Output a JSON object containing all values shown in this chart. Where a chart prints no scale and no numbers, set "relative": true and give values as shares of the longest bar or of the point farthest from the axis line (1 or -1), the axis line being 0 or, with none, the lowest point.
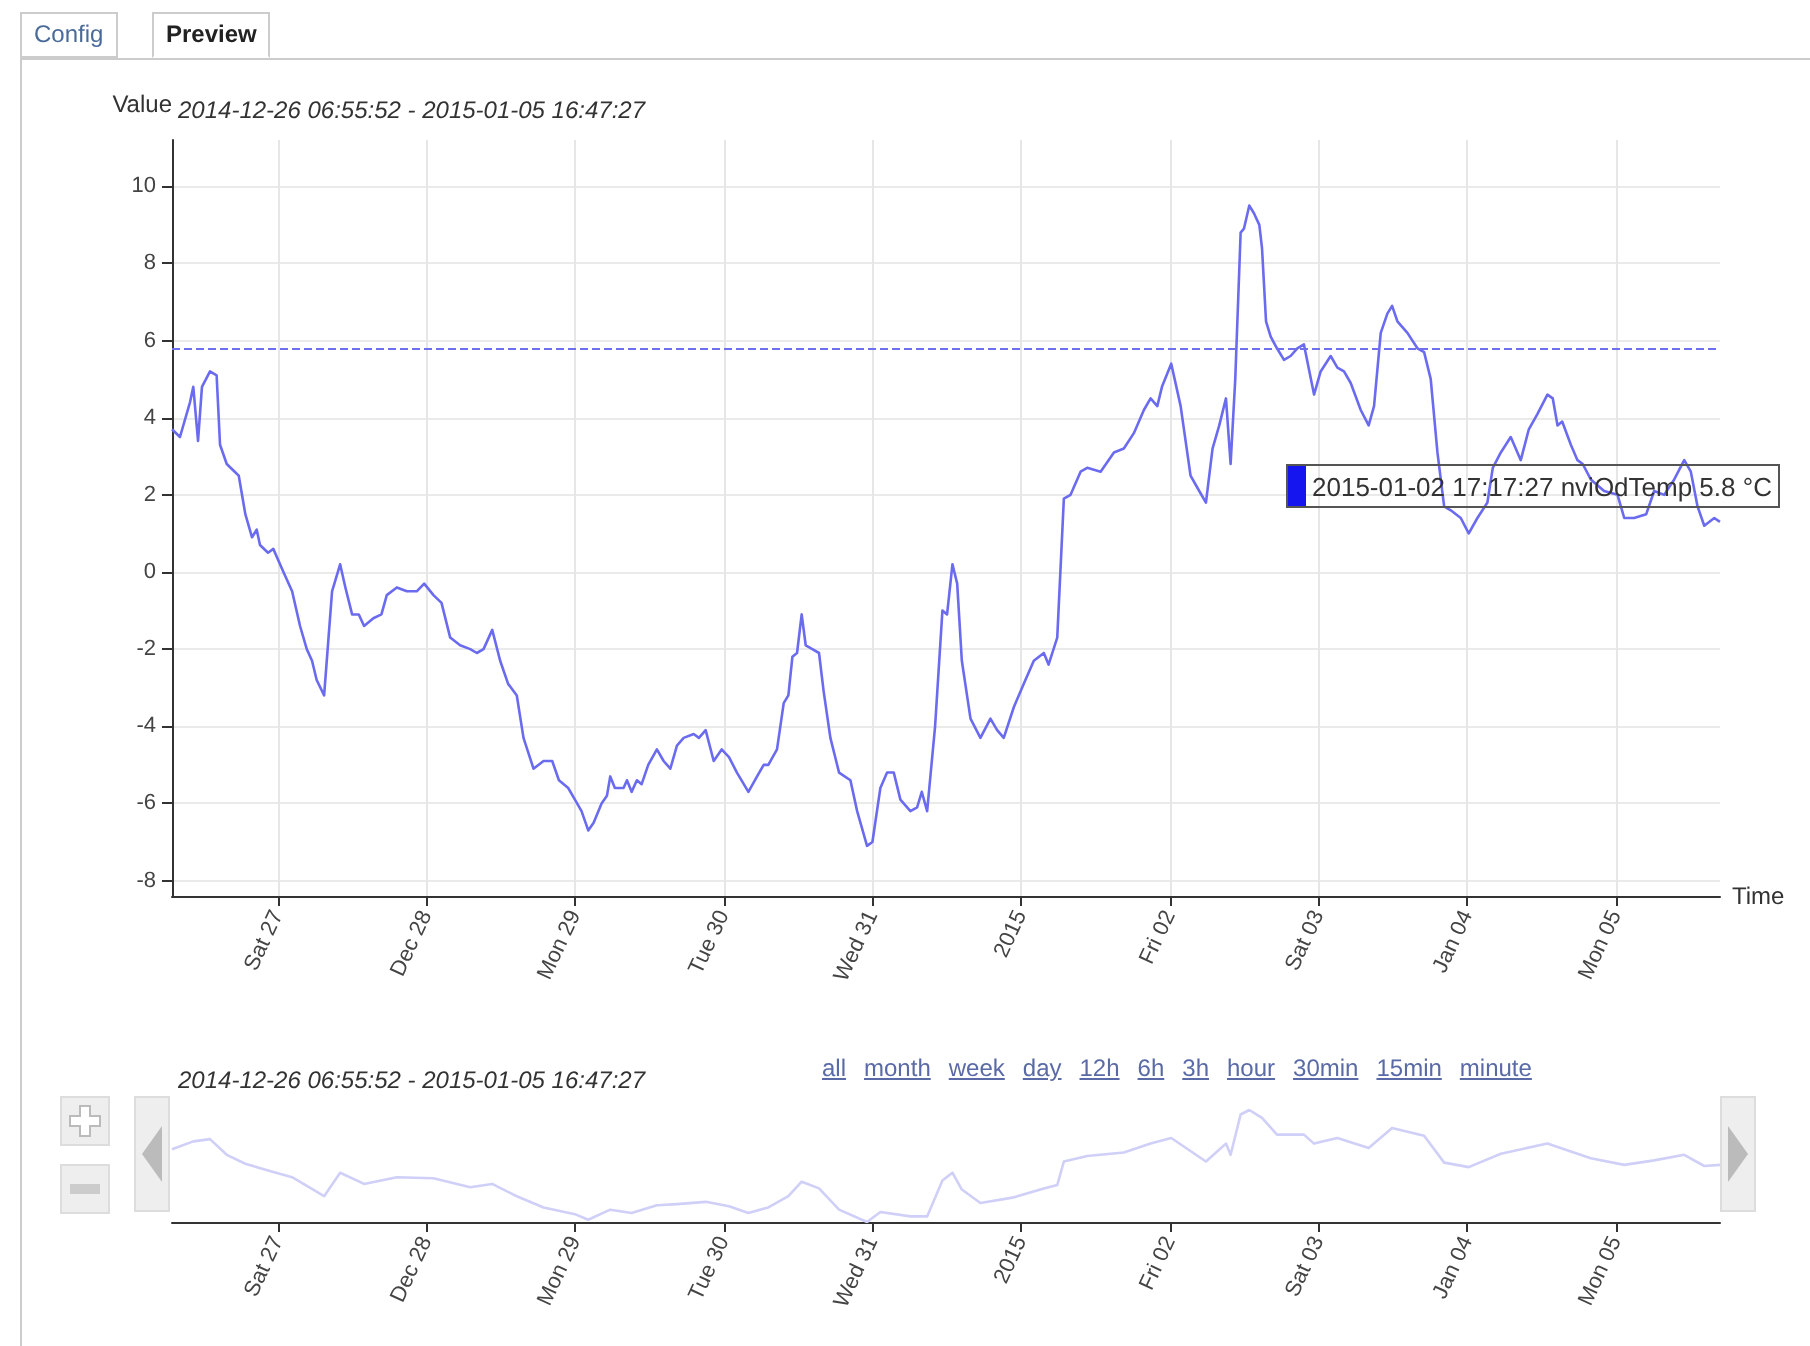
{
  "chart_data": [
    {
      "type": "line",
      "title": "2014-12-26 06:55:52 - 2015-01-05 16:47:27",
      "ylabel": "Value",
      "xlabel": "Time",
      "marker": "none",
      "grid": true,
      "xlim": [
        "2014-12-26T06:55:52",
        "2015-01-05T16:47:27"
      ],
      "ylim": [
        -8.4,
        11.2
      ],
      "xticks": [
        {
          "value": "2014-12-27",
          "label": "Sat 27"
        },
        {
          "value": "2014-12-28",
          "label": "Dec 28"
        },
        {
          "value": "2014-12-29",
          "label": "Mon 29"
        },
        {
          "value": "2014-12-30",
          "label": "Tue 30"
        },
        {
          "value": "2014-12-31",
          "label": "Wed 31"
        },
        {
          "value": "2015-01-01",
          "label": "2015"
        },
        {
          "value": "2015-01-02",
          "label": "Fri 02"
        },
        {
          "value": "2015-01-03",
          "label": "Sat 03"
        },
        {
          "value": "2015-01-04",
          "label": "Jan 04"
        },
        {
          "value": "2015-01-05",
          "label": "Mon 05"
        }
      ],
      "yticks": [
        -8,
        -6,
        -4,
        -2,
        0,
        2,
        4,
        6,
        8,
        10
      ],
      "ref_lines": [
        {
          "axis": "y",
          "value": 5.8,
          "color": "#7070ee",
          "line_style": "dashed"
        }
      ],
      "annotations": [
        "Config",
        "Preview",
        "2015-01-02 17:17:27 nviOdTemp 5.8 °C"
      ],
      "x": [
        "2014-12-26T06:56",
        "2014-12-26T08:13",
        "2014-12-26T09:50",
        "2014-12-26T10:22",
        "2014-12-26T11:08",
        "2014-12-26T11:46",
        "2014-12-26T13:04",
        "2014-12-26T14:08",
        "2014-12-26T14:41",
        "2014-12-26T15:46",
        "2014-12-26T17:03",
        "2014-12-26T17:42",
        "2014-12-26T18:46",
        "2014-12-26T19:51",
        "2014-12-26T20:36",
        "2014-12-26T21:08",
        "2014-12-26T22:26",
        "2014-12-26T23:17",
        "2014-12-27T00:55",
        "2014-12-27T02:19",
        "2014-12-27T03:36",
        "2014-12-27T04:41",
        "2014-12-27T05:32",
        "2014-12-27T06:17",
        "2014-12-27T07:29",
        "2014-12-27T08:46",
        "2014-12-27T10:04",
        "2014-12-27T10:55",
        "2014-12-27T12:00",
        "2014-12-27T13:05",
        "2014-12-27T13:56",
        "2014-12-27T15:26",
        "2014-12-27T16:44",
        "2014-12-27T17:36",
        "2014-12-27T19:13",
        "2014-12-27T20:50",
        "2014-12-27T22:26",
        "2014-12-27T23:38",
        "2014-12-28T01:08",
        "2014-12-28T02:26",
        "2014-12-28T03:50",
        "2014-12-28T05:26",
        "2014-12-28T07:04",
        "2014-12-28T08:08",
        "2014-12-28T09:13",
        "2014-12-28T10:37",
        "2014-12-28T11:54",
        "2014-12-28T13:11",
        "2014-12-28T14:35",
        "2014-12-28T15:40",
        "2014-12-28T17:17",
        "2014-12-28T18:54",
        "2014-12-28T20:18",
        "2014-12-28T21:23",
        "2014-12-28T22:53",
        "2014-12-28T23:58",
        "2014-12-29T01:02",
        "2014-12-29T02:07",
        "2014-12-29T02:59",
        "2014-12-29T04:16",
        "2014-12-29T05:08",
        "2014-12-29T05:40",
        "2014-12-29T06:25",
        "2014-12-29T07:49",
        "2014-12-29T08:22",
        "2014-12-29T09:07",
        "2014-12-29T09:58",
        "2014-12-29T10:44",
        "2014-12-29T11:48",
        "2014-12-29T13:12",
        "2014-12-29T14:17",
        "2014-12-29T15:22",
        "2014-12-29T16:26",
        "2014-12-29T17:31",
        "2014-12-29T19:08",
        "2014-12-29T19:59",
        "2014-12-29T21:04",
        "2014-12-29T22:22",
        "2014-12-29T23:39",
        "2014-12-30T00:50",
        "2014-12-30T02:07",
        "2014-12-30T03:58",
        "2014-12-30T05:22",
        "2014-12-30T06:26",
        "2014-12-30T07:11",
        "2014-12-30T08:35",
        "2014-12-30T09:40",
        "2014-12-30T10:25",
        "2014-12-30T11:04",
        "2014-12-30T11:49",
        "2014-12-30T12:34",
        "2014-12-30T13:13",
        "2014-12-30T14:17",
        "2014-12-30T15:22",
        "2014-12-30T16:07",
        "2014-12-30T17:12",
        "2014-12-30T18:36",
        "2014-12-30T20:26",
        "2014-12-30T21:31",
        "2014-12-30T23:07",
        "2014-12-30T23:59",
        "2014-12-31T01:16",
        "2014-12-31T02:21",
        "2014-12-31T03:26",
        "2014-12-31T04:30",
        "2014-12-31T06:07",
        "2014-12-31T07:12",
        "2014-12-31T07:57",
        "2014-12-31T08:49",
        "2014-12-31T10:06",
        "2014-12-31T11:17",
        "2014-12-31T12:02",
        "2014-12-31T12:54",
        "2014-12-31T13:40",
        "2014-12-31T14:25",
        "2014-12-31T15:49",
        "2014-12-31T17:25",
        "2014-12-31T19:02",
        "2014-12-31T20:07",
        "2014-12-31T21:11",
        "2014-12-31T22:49",
        "2015-01-01T00:25",
        "2015-01-01T02:02",
        "2015-01-01T03:39",
        "2015-01-01T04:25",
        "2015-01-01T05:49",
        "2015-01-01T06:53",
        "2015-01-01T07:58",
        "2015-01-01T09:35",
        "2015-01-01T10:39",
        "2015-01-01T12:49",
        "2015-01-01T14:58",
        "2015-01-01T16:34",
        "2015-01-01T18:11",
        "2015-01-01T19:48",
        "2015-01-01T20:53",
        "2015-01-01T21:58",
        "2015-01-01T22:43",
        "2015-01-02T00:13",
        "2015-01-02T01:44",
        "2015-01-02T03:20",
        "2015-01-02T04:44",
        "2015-01-02T05:49",
        "2015-01-02T06:53",
        "2015-01-02T07:58",
        "2015-01-02T09:03",
        "2015-01-02T09:48",
        "2015-01-02T10:33",
        "2015-01-02T11:25",
        "2015-01-02T11:57",
        "2015-01-02T12:49",
        "2015-01-02T13:34",
        "2015-01-02T14:26",
        "2015-01-02T14:52",
        "2015-01-02T15:31",
        "2015-01-02T16:16",
        "2015-01-02T17:17",
        "2015-01-02T18:25",
        "2015-01-02T19:29",
        "2015-01-02T20:34",
        "2015-01-02T21:38",
        "2015-01-02T23:16",
        "2015-01-03T00:20",
        "2015-01-03T01:57",
        "2015-01-03T03:02",
        "2015-01-03T04:06",
        "2015-01-03T05:11",
        "2015-01-03T06:48",
        "2015-01-03T08:05",
        "2015-01-03T08:57",
        "2015-01-03T10:02",
        "2015-01-03T11:06",
        "2015-01-03T11:52",
        "2015-01-03T12:43",
        "2015-01-03T14:20",
        "2015-01-03T15:57",
        "2015-01-03T17:02",
        "2015-01-03T18:06",
        "2015-01-03T19:11",
        "2015-01-03T20:16",
        "2015-01-03T21:20",
        "2015-01-03T22:57",
        "2015-01-04T00:14",
        "2015-01-04T01:38",
        "2015-01-04T03:15",
        "2015-01-04T04:07",
        "2015-01-04T05:25",
        "2015-01-04T07:01",
        "2015-01-04T08:38",
        "2015-01-04T09:56",
        "2015-01-04T11:20",
        "2015-01-04T12:56",
        "2015-01-04T13:48",
        "2015-01-04T14:34",
        "2015-01-04T15:19",
        "2015-01-04T16:43",
        "2015-01-04T17:47",
        "2015-01-04T18:38",
        "2015-01-04T19:56",
        "2015-01-04T22:05",
        "2015-01-05T00:15",
        "2015-01-05T01:20",
        "2015-01-05T02:56",
        "2015-01-05T04:53",
        "2015-01-05T06:10",
        "2015-01-05T07:47",
        "2015-01-05T09:24",
        "2015-01-05T11:01",
        "2015-01-05T12:05",
        "2015-01-05T13:10",
        "2015-01-05T14:15",
        "2015-01-05T15:52",
        "2015-01-05T16:47"
      ],
      "series": [
        {
          "color": "#6b6bf0",
          "values": [
            3.7,
            3.5,
            4.4,
            4.8,
            3.4,
            4.8,
            5.2,
            5.1,
            3.3,
            2.8,
            2.6,
            2.5,
            1.5,
            0.9,
            1.1,
            0.7,
            0.5,
            0.6,
            0.0,
            -0.5,
            -1.4,
            -2.0,
            -2.3,
            -2.8,
            -3.2,
            -0.5,
            0.2,
            -0.4,
            -1.1,
            -1.1,
            -1.4,
            -1.2,
            -1.1,
            -0.6,
            -0.4,
            -0.5,
            -0.5,
            -0.3,
            -0.6,
            -0.8,
            -1.7,
            -1.9,
            -2.0,
            -2.1,
            -2.0,
            -1.5,
            -2.3,
            -2.9,
            -3.2,
            -4.3,
            -5.1,
            -4.9,
            -4.9,
            -5.4,
            -5.6,
            -5.9,
            -6.2,
            -6.7,
            -6.5,
            -6.0,
            -5.8,
            -5.3,
            -5.6,
            -5.6,
            -5.4,
            -5.7,
            -5.4,
            -5.5,
            -5.0,
            -4.6,
            -4.9,
            -5.1,
            -4.5,
            -4.3,
            -4.2,
            -4.3,
            -4.1,
            -4.9,
            -4.6,
            -4.8,
            -5.2,
            -5.7,
            -5.3,
            -5.0,
            -5.0,
            -4.6,
            -3.4,
            -3.2,
            -2.2,
            -2.1,
            -1.1,
            -1.9,
            -2.0,
            -2.1,
            -3.1,
            -4.3,
            -5.2,
            -5.4,
            -6.2,
            -7.1,
            -7.0,
            -5.6,
            -5.2,
            -5.2,
            -5.9,
            -6.2,
            -6.1,
            -5.7,
            -6.2,
            -4.0,
            -1.0,
            -1.1,
            0.2,
            -0.3,
            -2.3,
            -3.8,
            -4.3,
            -3.8,
            -4.1,
            -4.3,
            -3.5,
            -2.9,
            -2.3,
            -2.1,
            -2.4,
            -1.7,
            1.9,
            2.0,
            2.6,
            2.7,
            2.6,
            3.1,
            3.2,
            3.6,
            4.2,
            4.5,
            4.3,
            4.8,
            5.4,
            4.3,
            2.5,
            2.1,
            1.8,
            3.2,
            3.8,
            4.5,
            2.8,
            5.0,
            8.8,
            8.9,
            9.5,
            9.3,
            9.0,
            8.4,
            6.5,
            6.1,
            5.8,
            5.5,
            5.6,
            5.8,
            5.9,
            4.6,
            5.2,
            5.6,
            5.3,
            5.2,
            4.9,
            4.2,
            3.8,
            4.3,
            6.2,
            6.7,
            6.9,
            6.5,
            6.2,
            5.8,
            5.7,
            5.0,
            3.1,
            1.7,
            1.6,
            1.4,
            1.0,
            1.4,
            1.8,
            2.7,
            3.1,
            3.5,
            2.9,
            3.7,
            4.1,
            4.6,
            4.5,
            3.8,
            3.9,
            3.3,
            2.9,
            2.8,
            2.4,
            2.1,
            2.0,
            1.4,
            1.4,
            1.5,
            2.1,
            2.0,
            2.4,
            2.9,
            2.6,
            1.7,
            1.2,
            1.4,
            1.3
          ]
        }
      ]
    },
    {
      "type": "line",
      "title": "2014-12-26 06:55:52 - 2015-01-05 16:47:27",
      "tick_labels": "x",
      "marker": "none",
      "relative": true,
      "xlim": [
        "2014-12-26T06:55:52",
        "2015-01-05T16:47:27"
      ],
      "xticks": [
        {
          "value": "2014-12-27",
          "label": "Sat 27"
        },
        {
          "value": "2014-12-28",
          "label": "Dec 28"
        },
        {
          "value": "2014-12-29",
          "label": "Mon 29"
        },
        {
          "value": "2014-12-30",
          "label": "Tue 30"
        },
        {
          "value": "2014-12-31",
          "label": "Wed 31"
        },
        {
          "value": "2015-01-01",
          "label": "2015"
        },
        {
          "value": "2015-01-02",
          "label": "Fri 02"
        },
        {
          "value": "2015-01-03",
          "label": "Sat 03"
        },
        {
          "value": "2015-01-04",
          "label": "Jan 04"
        },
        {
          "value": "2015-01-05",
          "label": "Mon 05"
        }
      ],
      "annotations": [
        "all",
        "month",
        "week",
        "day",
        "12h",
        "6h",
        "3h",
        "hour",
        "30min",
        "15min",
        "minute"
      ],
      "x": [
        "2014-12-26T06:56",
        "2014-12-26T10:22",
        "2014-12-26T13:04",
        "2014-12-26T15:46",
        "2014-12-26T18:46",
        "2014-12-26T22:26",
        "2014-12-27T02:19",
        "2014-12-27T07:29",
        "2014-12-27T10:04",
        "2014-12-27T13:56",
        "2014-12-27T19:13",
        "2014-12-28T01:08",
        "2014-12-28T07:04",
        "2014-12-28T10:37",
        "2014-12-28T14:35",
        "2014-12-28T18:54",
        "2014-12-28T23:58",
        "2014-12-29T02:07",
        "2014-12-29T05:40",
        "2014-12-29T09:07",
        "2014-12-29T13:12",
        "2014-12-29T16:26",
        "2014-12-29T21:04",
        "2014-12-30T00:50",
        "2014-12-30T03:58",
        "2014-12-30T07:11",
        "2014-12-30T10:25",
        "2014-12-30T12:34",
        "2014-12-30T15:22",
        "2014-12-30T18:36",
        "2014-12-30T23:07",
        "2014-12-31T01:16",
        "2014-12-31T06:07",
        "2014-12-31T08:49",
        "2014-12-31T11:17",
        "2014-12-31T12:54",
        "2014-12-31T14:25",
        "2014-12-31T17:25",
        "2014-12-31T22:49",
        "2015-01-01T03:39",
        "2015-01-01T05:49",
        "2015-01-01T06:53",
        "2015-01-01T10:39",
        "2015-01-01T16:34",
        "2015-01-01T20:53",
        "2015-01-02T00:13",
        "2015-01-02T05:49",
        "2015-01-02T09:03",
        "2015-01-02T09:48",
        "2015-01-02T11:25",
        "2015-01-02T12:49",
        "2015-01-02T14:52",
        "2015-01-02T17:17",
        "2015-01-02T21:38",
        "2015-01-02T23:16",
        "2015-01-03T03:02",
        "2015-01-03T08:05",
        "2015-01-03T11:52",
        "2015-01-03T17:02",
        "2015-01-03T20:16",
        "2015-01-04T00:14",
        "2015-01-04T05:25",
        "2015-01-04T12:56",
        "2015-01-04T16:43",
        "2015-01-04T19:56",
        "2015-01-05T01:20",
        "2015-01-05T06:10",
        "2015-01-05T11:01",
        "2015-01-05T14:15",
        "2015-01-05T16:47"
      ],
      "series": [
        {
          "color": "#cfcff8",
          "values": [
            0.65,
            0.72,
            0.74,
            0.6,
            0.52,
            0.46,
            0.4,
            0.23,
            0.44,
            0.34,
            0.4,
            0.39,
            0.31,
            0.34,
            0.23,
            0.13,
            0.07,
            0.02,
            0.11,
            0.08,
            0.15,
            0.16,
            0.18,
            0.14,
            0.08,
            0.13,
            0.23,
            0.36,
            0.3,
            0.11,
            0,
            0.09,
            0.05,
            0.05,
            0.37,
            0.44,
            0.29,
            0.17,
            0.22,
            0.3,
            0.33,
            0.54,
            0.59,
            0.62,
            0.7,
            0.75,
            0.54,
            0.7,
            0.6,
            0.96,
            1,
            0.93,
            0.78,
            0.78,
            0.7,
            0.75,
            0.66,
            0.84,
            0.77,
            0.53,
            0.49,
            0.61,
            0.7,
            0.63,
            0.57,
            0.51,
            0.55,
            0.6,
            0.5,
            0.51
          ]
        }
      ]
    }
  ]
}
